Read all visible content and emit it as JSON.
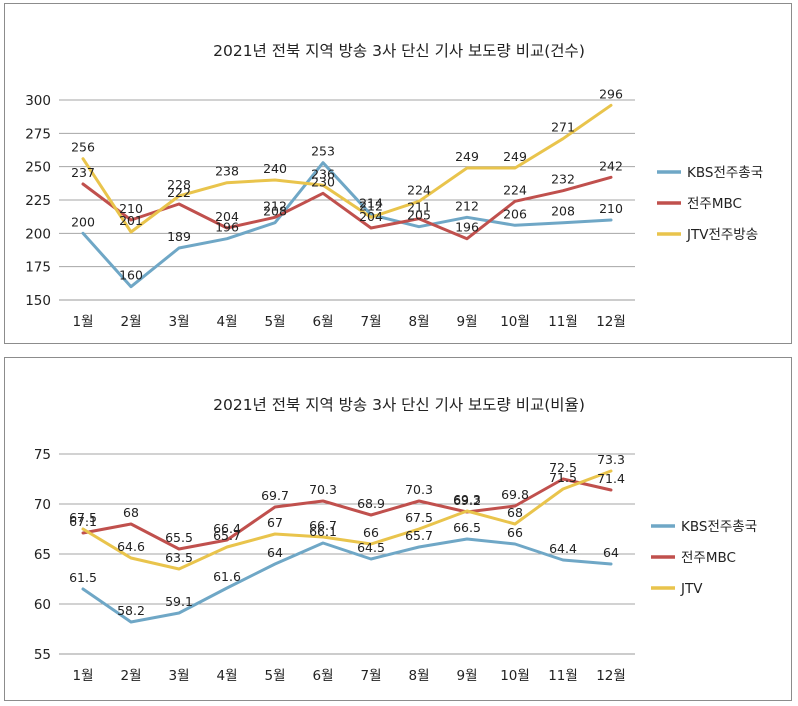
{
  "chart_data": [
    {
      "type": "line",
      "title": "2021년 전북 지역 방송 3사 단신 기사 보도량 비교(건수)",
      "categories": [
        "1월",
        "2월",
        "3월",
        "4월",
        "5월",
        "6월",
        "7월",
        "8월",
        "9월",
        "10월",
        "11월",
        "12월"
      ],
      "ylim": [
        150,
        300
      ],
      "yticks": [
        "150",
        "175",
        "200",
        "225",
        "250",
        "275",
        "300"
      ],
      "yticks_num": [
        150,
        175,
        200,
        225,
        250,
        275,
        300
      ],
      "grid": true,
      "legend": "right",
      "series": [
        {
          "name": "KBS전주총국",
          "color": "#6fa7c6",
          "values": [
            200,
            160,
            189,
            196,
            208,
            253,
            214,
            205,
            212,
            206,
            208,
            210
          ],
          "labels": [
            "200",
            "160",
            "189",
            "196",
            "208",
            "253",
            "214",
            "205",
            "212",
            "206",
            "208",
            "210"
          ]
        },
        {
          "name": "전주MBC",
          "color": "#c0504d",
          "values": [
            237,
            210,
            222,
            204,
            212,
            230,
            204,
            211,
            196,
            224,
            232,
            242
          ],
          "labels": [
            "237",
            "210",
            "222",
            "204",
            "212",
            "230",
            "204",
            "211",
            "196",
            "224",
            "232",
            "242"
          ]
        },
        {
          "name": "JTV전주방송",
          "color": "#e9c44c",
          "values": [
            256,
            201,
            228,
            238,
            240,
            236,
            212,
            224,
            249,
            249,
            271,
            296
          ],
          "labels": [
            "256",
            "201",
            "228",
            "238",
            "240",
            "236",
            "212",
            "224",
            "249",
            "249",
            "271",
            "296"
          ]
        }
      ]
    },
    {
      "type": "line",
      "title": "2021년 전북 지역 방송 3사 단신 기사 보도량 비교(비율)",
      "categories": [
        "1월",
        "2월",
        "3월",
        "4월",
        "5월",
        "6월",
        "7월",
        "8월",
        "9월",
        "10월",
        "11월",
        "12월"
      ],
      "ylim": [
        55,
        75
      ],
      "yticks": [
        "55",
        "60",
        "65",
        "70",
        "75"
      ],
      "yticks_num": [
        55,
        60,
        65,
        70,
        75
      ],
      "grid": true,
      "legend": "right",
      "series": [
        {
          "name": "KBS전주총국",
          "color": "#6fa7c6",
          "values": [
            61.5,
            58.2,
            59.1,
            61.6,
            64,
            66.1,
            64.5,
            65.7,
            66.5,
            66,
            64.4,
            64
          ],
          "labels": [
            "61.5",
            "58.2",
            "59.1",
            "61.6",
            "64",
            "66.1",
            "64.5",
            "65.7",
            "66.5",
            "66",
            "64.4",
            "64"
          ]
        },
        {
          "name": "전주MBC",
          "color": "#c0504d",
          "values": [
            67.1,
            68,
            65.5,
            66.4,
            69.7,
            70.3,
            68.9,
            70.3,
            69.2,
            69.8,
            72.5,
            71.4
          ],
          "labels": [
            "67.1",
            "68",
            "65.5",
            "66.4",
            "69.7",
            "70.3",
            "68.9",
            "70.3",
            "69.2",
            "69.8",
            "72.5",
            "71.4"
          ]
        },
        {
          "name": "JTV",
          "color": "#e9c44c",
          "values": [
            67.5,
            64.6,
            63.5,
            65.7,
            67,
            66.7,
            66,
            67.5,
            69.3,
            68,
            71.5,
            73.3
          ],
          "labels": [
            "67.5",
            "64.6",
            "63.5",
            "65.7",
            "67",
            "66.7",
            "66",
            "67.5",
            "69.3",
            "68",
            "71.5",
            "73.3"
          ]
        }
      ]
    }
  ]
}
